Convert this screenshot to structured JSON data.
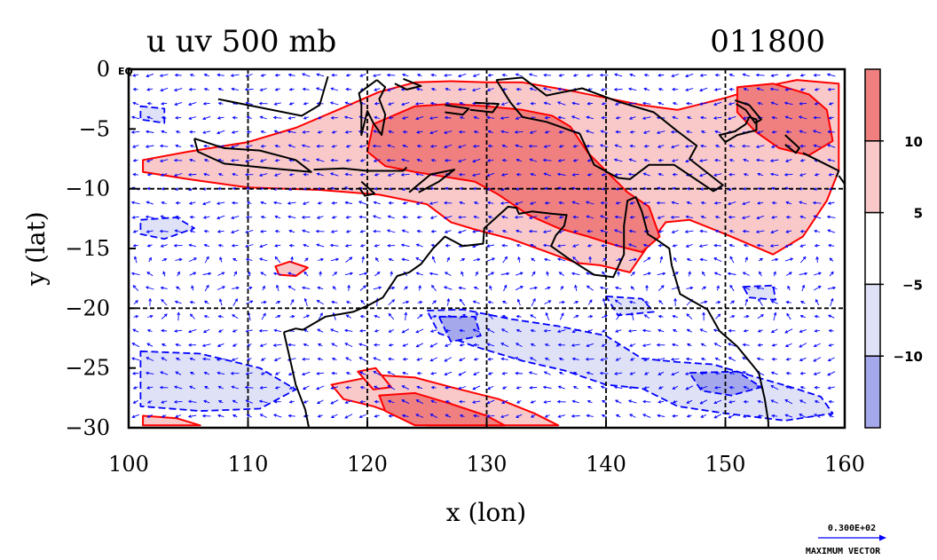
{
  "title_left": "u uv 500 mb",
  "title_right": "011800",
  "equator_label": "EQ",
  "vector_key": {
    "value": "0.300E+02",
    "label": "MAXIMUM VECTOR"
  },
  "colors": {
    "strong_pos": "#f08080",
    "pos": "#f9c9c9",
    "neg": "#dfe1f7",
    "strong_neg": "#a5a9ec",
    "pos_contour": "#ff0000",
    "neg_contour": "#0000ff",
    "vectors": "#0000ff",
    "coast": "#000000"
  },
  "chart_data": {
    "type": "heatmap",
    "variable": "u",
    "overlay": "uv wind vectors",
    "level": "500 mb",
    "time": "011800",
    "xlabel": "x (lon)",
    "ylabel": "y (lat)",
    "xlim": [
      100,
      160
    ],
    "ylim": [
      -30,
      0
    ],
    "xticks": [
      100,
      110,
      120,
      130,
      140,
      150,
      160
    ],
    "yticks": [
      0,
      -5,
      -10,
      -15,
      -20,
      -25,
      -30
    ],
    "ytick_labels": [
      "0",
      "−5",
      "−10",
      "−15",
      "−20",
      "−25",
      "−30"
    ],
    "grid": true,
    "gridlines_x": [
      110,
      120,
      130,
      140,
      150
    ],
    "gridlines_y": [
      -10,
      -20
    ],
    "colorbar": {
      "position": "right",
      "levels": [
        10,
        5,
        -5,
        -10
      ],
      "labels": [
        "10",
        "5",
        "−5",
        "−10"
      ]
    },
    "regions": [
      {
        "level": "pos",
        "points": [
          [
            101.2,
            -7.6
          ],
          [
            105,
            -6.9
          ],
          [
            110,
            -6.1
          ],
          [
            114,
            -4.9
          ],
          [
            118,
            -3.2
          ],
          [
            121,
            -1.9
          ],
          [
            124,
            -1.1
          ],
          [
            127,
            -1
          ],
          [
            130,
            -1.1
          ],
          [
            133,
            -1.1
          ],
          [
            137,
            -1.8
          ],
          [
            140,
            -2.4
          ],
          [
            143,
            -3
          ],
          [
            146,
            -3.4
          ],
          [
            150,
            -2.4
          ],
          [
            153,
            -1.5
          ],
          [
            156,
            -0.9
          ],
          [
            159.5,
            -1.2
          ],
          [
            159.5,
            -8.5
          ],
          [
            158.5,
            -11
          ],
          [
            156.5,
            -14
          ],
          [
            154,
            -15.5
          ],
          [
            150,
            -13.8
          ],
          [
            147,
            -12.6
          ],
          [
            145,
            -12.8
          ],
          [
            143.5,
            -14.8
          ],
          [
            142,
            -17
          ],
          [
            139.5,
            -16.4
          ],
          [
            137.5,
            -16.2
          ],
          [
            134.8,
            -15.2
          ],
          [
            132,
            -14.2
          ],
          [
            129,
            -13.4
          ],
          [
            127,
            -12.8
          ],
          [
            125,
            -11.3
          ],
          [
            121,
            -10.5
          ],
          [
            116,
            -10.1
          ],
          [
            110,
            -9.9
          ],
          [
            105,
            -9.2
          ],
          [
            101.2,
            -8.6
          ]
        ]
      },
      {
        "level": "strong_pos",
        "points": [
          [
            120.5,
            -4.6
          ],
          [
            124,
            -3.1
          ],
          [
            127,
            -2.9
          ],
          [
            130,
            -3.1
          ],
          [
            133,
            -3.4
          ],
          [
            135.5,
            -3.9
          ],
          [
            137,
            -4.8
          ],
          [
            138.5,
            -7
          ],
          [
            139.8,
            -8.3
          ],
          [
            141.8,
            -10.3
          ],
          [
            143.6,
            -11.5
          ],
          [
            144.5,
            -14
          ],
          [
            143,
            -15.3
          ],
          [
            141,
            -14.8
          ],
          [
            138.5,
            -14
          ],
          [
            136,
            -13.3
          ],
          [
            133.5,
            -12.2
          ],
          [
            131,
            -10.5
          ],
          [
            129,
            -9.4
          ],
          [
            126.5,
            -9
          ],
          [
            124,
            -8.6
          ],
          [
            121.5,
            -8.1
          ],
          [
            120,
            -6.9
          ]
        ]
      },
      {
        "level": "strong_pos",
        "points": [
          [
            151,
            -1.5
          ],
          [
            154,
            -1.2
          ],
          [
            157,
            -2.1
          ],
          [
            158.5,
            -3.4
          ],
          [
            159,
            -6
          ],
          [
            157,
            -7.2
          ],
          [
            154.5,
            -6.6
          ],
          [
            152.5,
            -5.2
          ],
          [
            151,
            -3.6
          ]
        ]
      },
      {
        "level": "pos",
        "points": [
          [
            117,
            -26.4
          ],
          [
            121,
            -25.6
          ],
          [
            124,
            -25.8
          ],
          [
            127,
            -26.6
          ],
          [
            131,
            -27.6
          ],
          [
            134,
            -28.8
          ],
          [
            136,
            -29.8
          ],
          [
            125,
            -29.8
          ],
          [
            120.5,
            -28.2
          ],
          [
            118,
            -27.6
          ]
        ]
      },
      {
        "level": "strong_pos",
        "points": [
          [
            121,
            -27.3
          ],
          [
            124,
            -27.1
          ],
          [
            127,
            -28
          ],
          [
            130,
            -29
          ],
          [
            131.5,
            -29.8
          ],
          [
            124,
            -29.8
          ],
          [
            121.5,
            -28.6
          ]
        ]
      },
      {
        "level": "pos",
        "points": [
          [
            119.2,
            -25.3
          ],
          [
            120.7,
            -25
          ],
          [
            122,
            -26.6
          ],
          [
            120.5,
            -26.8
          ]
        ]
      },
      {
        "level": "pos",
        "points": [
          [
            101.2,
            -29
          ],
          [
            104,
            -29.2
          ],
          [
            106,
            -29.8
          ],
          [
            101.2,
            -29.8
          ]
        ]
      },
      {
        "level": "pos",
        "points": [
          [
            112.3,
            -16.5
          ],
          [
            113.5,
            -16.1
          ],
          [
            115,
            -16.6
          ],
          [
            114,
            -17.3
          ],
          [
            112.6,
            -17.2
          ]
        ]
      },
      {
        "level": "neg",
        "points": [
          [
            125,
            -20.2
          ],
          [
            128,
            -20.1
          ],
          [
            132,
            -20.9
          ],
          [
            136,
            -21.5
          ],
          [
            140,
            -22.3
          ],
          [
            143,
            -24.2
          ],
          [
            146,
            -24.5
          ],
          [
            149,
            -24.7
          ],
          [
            152,
            -25.6
          ],
          [
            155.5,
            -26.6
          ],
          [
            158,
            -27.4
          ],
          [
            159,
            -28.8
          ],
          [
            155,
            -29.4
          ],
          [
            150,
            -28.8
          ],
          [
            146,
            -28.2
          ],
          [
            143,
            -26.7
          ],
          [
            140,
            -26.4
          ],
          [
            136.5,
            -25.2
          ],
          [
            133,
            -24.4
          ],
          [
            129,
            -23.2
          ],
          [
            126,
            -22.1
          ]
        ]
      },
      {
        "level": "strong_neg",
        "points": [
          [
            126,
            -20.7
          ],
          [
            129,
            -20.7
          ],
          [
            129.5,
            -22.3
          ],
          [
            127,
            -22.8
          ]
        ]
      },
      {
        "level": "strong_neg",
        "points": [
          [
            147,
            -25.4
          ],
          [
            151,
            -25.3
          ],
          [
            153,
            -26.6
          ],
          [
            150.5,
            -27.3
          ],
          [
            148,
            -26.9
          ]
        ]
      },
      {
        "level": "neg",
        "points": [
          [
            101,
            -23.6
          ],
          [
            106,
            -23.8
          ],
          [
            111,
            -25
          ],
          [
            114,
            -26.8
          ],
          [
            111,
            -28.4
          ],
          [
            106,
            -28.6
          ],
          [
            101,
            -28.2
          ]
        ]
      },
      {
        "level": "neg",
        "points": [
          [
            140,
            -19
          ],
          [
            143,
            -19.2
          ],
          [
            144,
            -20.3
          ],
          [
            141,
            -20.6
          ]
        ]
      },
      {
        "level": "neg",
        "points": [
          [
            101,
            -12.6
          ],
          [
            104,
            -12.4
          ],
          [
            105.5,
            -13.3
          ],
          [
            103,
            -14.2
          ],
          [
            101,
            -13.8
          ]
        ]
      },
      {
        "level": "neg",
        "points": [
          [
            151.5,
            -18.2
          ],
          [
            154,
            -18.1
          ],
          [
            154.2,
            -19.3
          ],
          [
            152,
            -19.1
          ]
        ]
      },
      {
        "level": "neg",
        "points": [
          [
            101,
            -3.1
          ],
          [
            103,
            -3.3
          ],
          [
            103,
            -4.5
          ],
          [
            101,
            -4.2
          ]
        ]
      }
    ],
    "coastlines": [
      [
        [
          107.5,
          -2.5
        ],
        [
          114.5,
          -3.9
        ],
        [
          116,
          -3
        ],
        [
          116.7,
          -0.6
        ]
      ],
      [
        [
          105.5,
          -5.8
        ],
        [
          108,
          -6.6
        ],
        [
          111,
          -6.8
        ],
        [
          114,
          -7.6
        ],
        [
          115.3,
          -8.6
        ],
        [
          112,
          -8.3
        ],
        [
          108,
          -7.9
        ],
        [
          105.8,
          -6.9
        ],
        [
          105.5,
          -5.8
        ]
      ],
      [
        [
          115.5,
          -8.4
        ],
        [
          118,
          -8.3
        ],
        [
          120,
          -8.5
        ],
        [
          123,
          -8.5
        ],
        [
          123.3,
          -8.2
        ]
      ],
      [
        [
          119.5,
          -9.4
        ],
        [
          120.6,
          -10.4
        ],
        [
          119.8,
          -10.6
        ],
        [
          119.3,
          -9.9
        ]
      ],
      [
        [
          123.5,
          -10.3
        ],
        [
          125.3,
          -8.8
        ],
        [
          127.3,
          -8.4
        ],
        [
          126,
          -9.4
        ],
        [
          124.3,
          -10.3
        ]
      ],
      [
        [
          120.8,
          -0.9
        ],
        [
          121.5,
          -1.5
        ],
        [
          121,
          -2.5
        ],
        [
          121.5,
          -3.8
        ],
        [
          121.2,
          -5.5
        ],
        [
          120.5,
          -4.5
        ],
        [
          120,
          -3.5
        ],
        [
          119.5,
          -5.5
        ],
        [
          119.5,
          -3
        ],
        [
          119.3,
          -2
        ],
        [
          120.8,
          -0.9
        ]
      ],
      [
        [
          123,
          -0.8
        ],
        [
          124.5,
          -1.4
        ],
        [
          123.3,
          -1.7
        ],
        [
          122.3,
          -1.2
        ]
      ],
      [
        [
          126.5,
          -3
        ],
        [
          128.5,
          -3.3
        ],
        [
          128,
          -3.8
        ],
        [
          126.5,
          -3.6
        ]
      ],
      [
        [
          129,
          -2.8
        ],
        [
          131,
          -2.9
        ],
        [
          130.5,
          -3.6
        ],
        [
          128.6,
          -3.4
        ]
      ],
      [
        [
          130.8,
          -0.9
        ],
        [
          133,
          -0.7
        ],
        [
          135,
          -2.2
        ],
        [
          138,
          -1.6
        ],
        [
          141,
          -2.7
        ],
        [
          144,
          -3.6
        ],
        [
          146,
          -5.2
        ],
        [
          147.6,
          -6.4
        ],
        [
          147,
          -7.5
        ],
        [
          149.8,
          -9.7
        ],
        [
          149,
          -10.2
        ],
        [
          145.7,
          -8
        ],
        [
          143.6,
          -8
        ],
        [
          142,
          -9.2
        ],
        [
          141,
          -9.1
        ],
        [
          139,
          -8
        ],
        [
          137.8,
          -5.4
        ],
        [
          135,
          -4.4
        ],
        [
          133,
          -4
        ],
        [
          132,
          -2.8
        ],
        [
          130.8,
          -0.9
        ]
      ],
      [
        [
          152,
          -4
        ],
        [
          152.6,
          -4.2
        ],
        [
          152.6,
          -5.1
        ],
        [
          151,
          -5.5
        ],
        [
          150,
          -6.1
        ],
        [
          149.5,
          -5.5
        ],
        [
          150.8,
          -5.2
        ],
        [
          151.7,
          -4.6
        ],
        [
          152,
          -4
        ]
      ],
      [
        [
          150.8,
          -2.6
        ],
        [
          152,
          -3
        ],
        [
          153,
          -4.2
        ],
        [
          152.5,
          -4.5
        ],
        [
          151.7,
          -3.4
        ],
        [
          150.9,
          -2.9
        ]
      ],
      [
        [
          155,
          -5.5
        ],
        [
          156.2,
          -6.6
        ],
        [
          155.9,
          -7
        ],
        [
          155,
          -6.3
        ]
      ],
      [
        [
          156.5,
          -7
        ],
        [
          158.5,
          -8
        ],
        [
          159.5,
          -8.5
        ],
        [
          159.3,
          -9
        ]
      ],
      [
        [
          159.5,
          -8.9
        ],
        [
          160,
          -9.6
        ]
      ],
      [
        [
          113,
          -22
        ],
        [
          114,
          -21.7
        ],
        [
          114.6,
          -21.8
        ],
        [
          116.5,
          -20.7
        ],
        [
          118.8,
          -20.3
        ],
        [
          120,
          -19.8
        ],
        [
          121.3,
          -19.1
        ],
        [
          122.5,
          -17.3
        ],
        [
          123.5,
          -17
        ],
        [
          124.5,
          -16.3
        ],
        [
          125.5,
          -15
        ],
        [
          126.5,
          -14
        ],
        [
          128,
          -14.8
        ],
        [
          129.7,
          -14.6
        ],
        [
          129.8,
          -13.3
        ],
        [
          130.8,
          -12.4
        ],
        [
          131.8,
          -11.5
        ],
        [
          132.5,
          -11.6
        ],
        [
          132.7,
          -12.1
        ],
        [
          133.8,
          -11.9
        ],
        [
          135.5,
          -12.1
        ],
        [
          136.7,
          -12.2
        ],
        [
          136.5,
          -13.1
        ],
        [
          135.8,
          -13.9
        ],
        [
          135.4,
          -14.8
        ],
        [
          136.8,
          -15.8
        ],
        [
          139,
          -17.2
        ],
        [
          140.6,
          -17.4
        ],
        [
          141.5,
          -15.5
        ],
        [
          141.5,
          -13.1
        ],
        [
          141.8,
          -11
        ],
        [
          142.5,
          -10.7
        ],
        [
          143,
          -11.9
        ],
        [
          143.5,
          -13.8
        ],
        [
          144.3,
          -14.3
        ],
        [
          145.3,
          -15
        ],
        [
          145.5,
          -16.4
        ],
        [
          146.2,
          -18.8
        ],
        [
          148.5,
          -20.1
        ],
        [
          149.5,
          -21.9
        ],
        [
          151,
          -23.2
        ],
        [
          152.8,
          -25.4
        ],
        [
          153.3,
          -27.6
        ],
        [
          153.6,
          -29.5
        ],
        [
          153.6,
          -30
        ]
      ],
      [
        [
          113,
          -22
        ],
        [
          113.6,
          -24.6
        ],
        [
          114,
          -26.4
        ],
        [
          114.8,
          -28.5
        ],
        [
          115.1,
          -30
        ]
      ]
    ]
  }
}
